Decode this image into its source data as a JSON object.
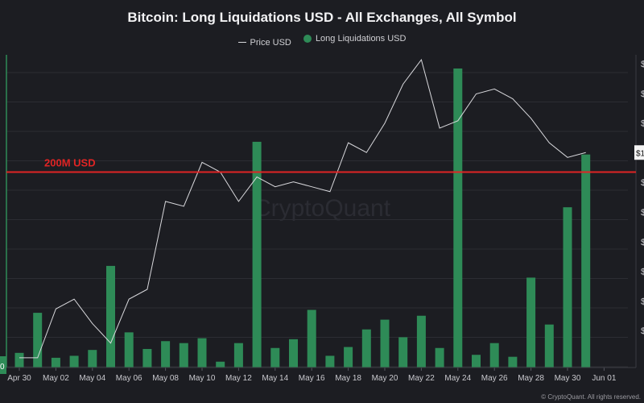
{
  "title": "Bitcoin: Long Liquidations USD - All Exchanges, All Symbol",
  "legend": {
    "price": "Price USD",
    "liquidations": "Long Liquidations USD"
  },
  "annotation": {
    "label": "200M USD",
    "value": 200
  },
  "watermark": "CryptoQuant",
  "footer": "© CryptoQuant. All rights reserved.",
  "left_axis_label": "0",
  "right_axis": {
    "current_price_label": "$1",
    "tick_label": "$"
  },
  "colors": {
    "bars": "#2e8b57",
    "price": "#d8d8dc",
    "annotation": "#e02424",
    "background": "#1c1d22"
  },
  "chart_data": {
    "type": "bar",
    "title": "Bitcoin: Long Liquidations USD - All Exchanges, All Symbol",
    "x_tick_labels": [
      "Apr 30",
      "May 02",
      "May 04",
      "May 06",
      "May 08",
      "May 10",
      "May 12",
      "May 14",
      "May 16",
      "May 18",
      "May 20",
      "May 22",
      "May 24",
      "May 26",
      "May 28",
      "May 30",
      "Jun 01"
    ],
    "categories": [
      "Apr 30",
      "May 01",
      "May 02",
      "May 03",
      "May 04",
      "May 05",
      "May 06",
      "May 07",
      "May 08",
      "May 09",
      "May 10",
      "May 11",
      "May 12",
      "May 13",
      "May 14",
      "May 15",
      "May 16",
      "May 17",
      "May 18",
      "May 19",
      "May 20",
      "May 21",
      "May 22",
      "May 23",
      "May 24",
      "May 25",
      "May 26",
      "May 27",
      "May 28",
      "May 29",
      "May 30",
      "May 31"
    ],
    "series": [
      {
        "name": "Long Liquidations USD",
        "type": "bar",
        "values": [
          15,
          56,
          10,
          12,
          18,
          104,
          36,
          19,
          27,
          25,
          30,
          6,
          25,
          231,
          20,
          29,
          59,
          12,
          21,
          39,
          49,
          31,
          53,
          20,
          306,
          13,
          25,
          11,
          92,
          44,
          164,
          218
        ]
      },
      {
        "name": "Price USD",
        "type": "line",
        "values": [
          60000,
          60000,
          61000,
          61200,
          60700,
          60300,
          61200,
          61400,
          63200,
          63100,
          64000,
          63800,
          63200,
          63700,
          63500,
          63600,
          63500,
          63400,
          64400,
          64200,
          64800,
          65600,
          66100,
          64700,
          64850,
          65400,
          65500,
          65300,
          64900,
          64400,
          64100,
          64200
        ]
      }
    ],
    "ylim": [
      0,
      320
    ],
    "price_range": [
      59800,
      66200
    ],
    "reference_line": {
      "value": 200,
      "label": "200M USD"
    },
    "grid": true
  }
}
